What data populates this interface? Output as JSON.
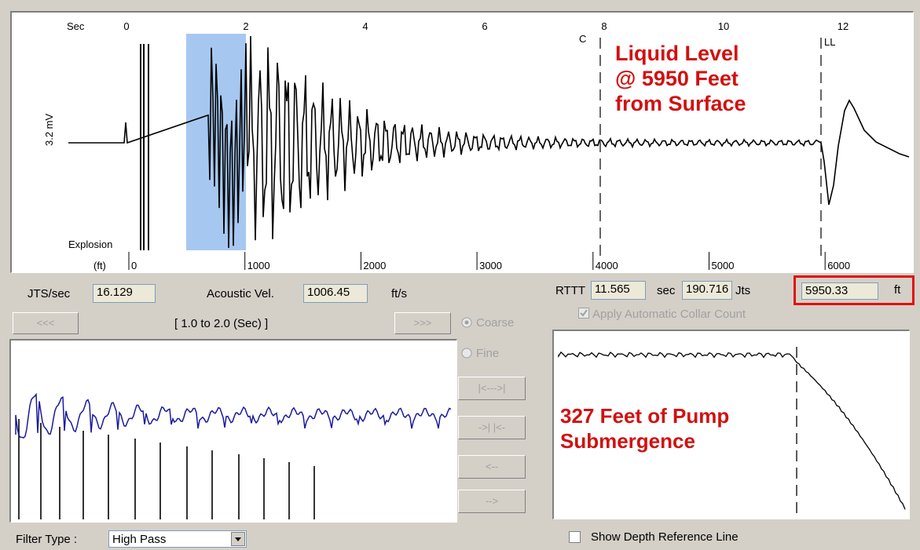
{
  "main_plot": {
    "x_unit_label": "Sec",
    "time_ticks": [
      {
        "value": 0,
        "label": "0"
      },
      {
        "value": 2,
        "label": "2"
      },
      {
        "value": 4,
        "label": "4"
      },
      {
        "value": 6,
        "label": "6"
      },
      {
        "value": 8,
        "label": "8"
      },
      {
        "value": 10,
        "label": "10"
      },
      {
        "value": 12,
        "label": "12"
      }
    ],
    "depth_unit_label": "(ft)",
    "depth_ticks": [
      {
        "value": 0,
        "label": "0"
      },
      {
        "value": 1000,
        "label": "1000"
      },
      {
        "value": 2000,
        "label": "2000"
      },
      {
        "value": 3000,
        "label": "3000"
      },
      {
        "value": 4000,
        "label": "4000"
      },
      {
        "value": 5000,
        "label": "5000"
      },
      {
        "value": 6000,
        "label": "6000"
      }
    ],
    "y_label": "3.2 mV",
    "explosion_label": "Explosion",
    "marker_collar": "C",
    "marker_liquid_level": "LL",
    "highlight_sec": [
      1.0,
      2.0
    ],
    "highlight_color": "#a6c8f0",
    "annotation_lines": [
      "Liquid Level",
      "@ 5950 Feet",
      "from Surface"
    ],
    "annotation_color": "#d21010"
  },
  "left_panel": {
    "jts_label": "JTS/sec",
    "jts_value": "16.129",
    "acoustic_label": "Acoustic Vel.",
    "acoustic_value": "1006.45",
    "acoustic_unit": "ft/s",
    "prev_button": "<<<",
    "next_button": ">>>",
    "range_text": "[ 1.0  to  2.0 (Sec) ]",
    "filter_label": "Filter Type :",
    "filter_value": "High Pass",
    "trace_color": "#1a1a9e"
  },
  "mid_controls": {
    "coarse_label": "Coarse",
    "fine_label": "Fine",
    "buttons": [
      "|<--->|",
      "->| |<-",
      "<--",
      "-->"
    ]
  },
  "right_panel": {
    "rttt_label": "RTTT",
    "rttt_value": "11.565",
    "sec_unit": "sec",
    "jts_value": "190.716",
    "jts_unit": "Jts",
    "depth_value": "5950.33",
    "depth_unit": "ft",
    "auto_collar_label": "Apply Automatic Collar Count",
    "submergence_lines": [
      "327 Feet of Pump",
      "Submergence"
    ],
    "show_depth_label": "Show Depth Reference Line",
    "highlight_box_color": "#e01010"
  }
}
